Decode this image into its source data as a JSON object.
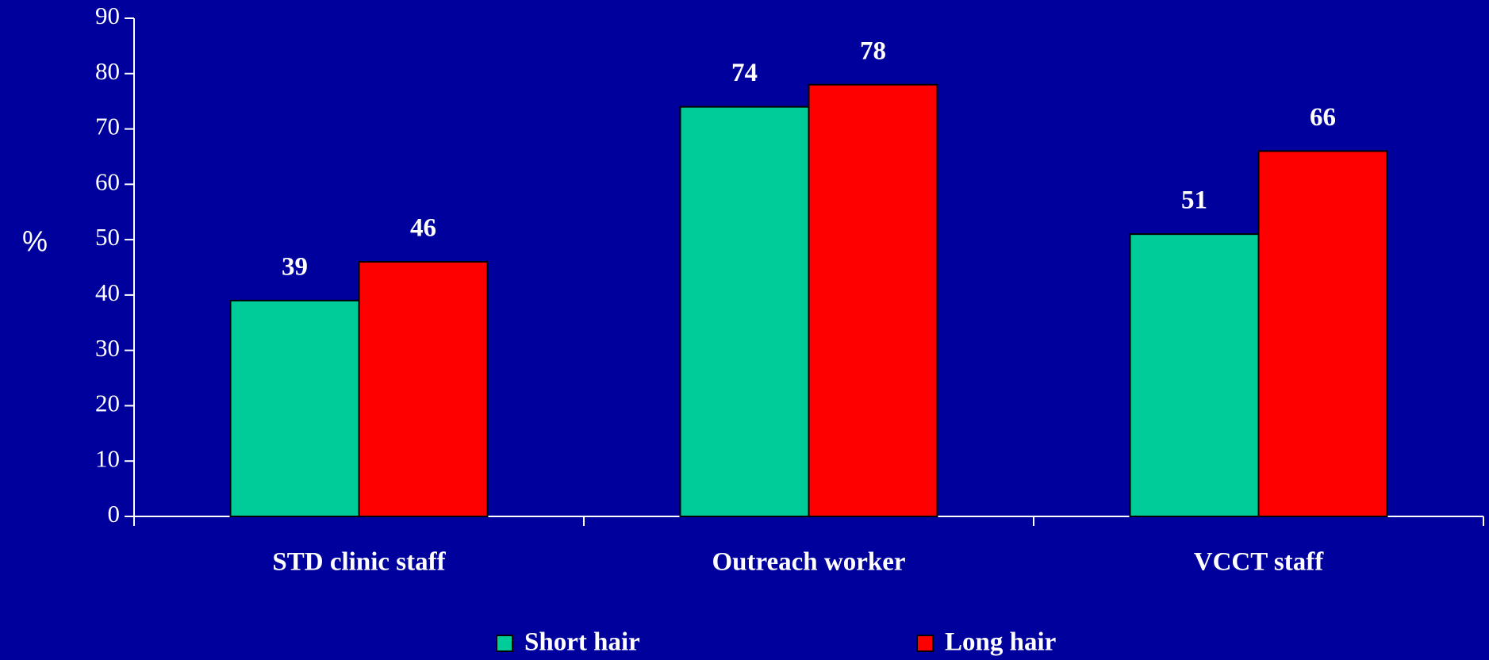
{
  "chart_data": {
    "type": "bar",
    "y_label": "%",
    "categories": [
      "STD clinic staff",
      "Outreach worker",
      "VCCT staff"
    ],
    "series": [
      {
        "name": "Short hair",
        "color": "#00cc99",
        "values": [
          39,
          74,
          51
        ]
      },
      {
        "name": "Long hair",
        "color": "#ff0000",
        "values": [
          46,
          78,
          66
        ]
      }
    ],
    "ylim": [
      0,
      90
    ],
    "yticks": [
      0,
      10,
      20,
      30,
      40,
      50,
      60,
      70,
      80,
      90
    ],
    "grid": false,
    "legend": "bottom"
  }
}
